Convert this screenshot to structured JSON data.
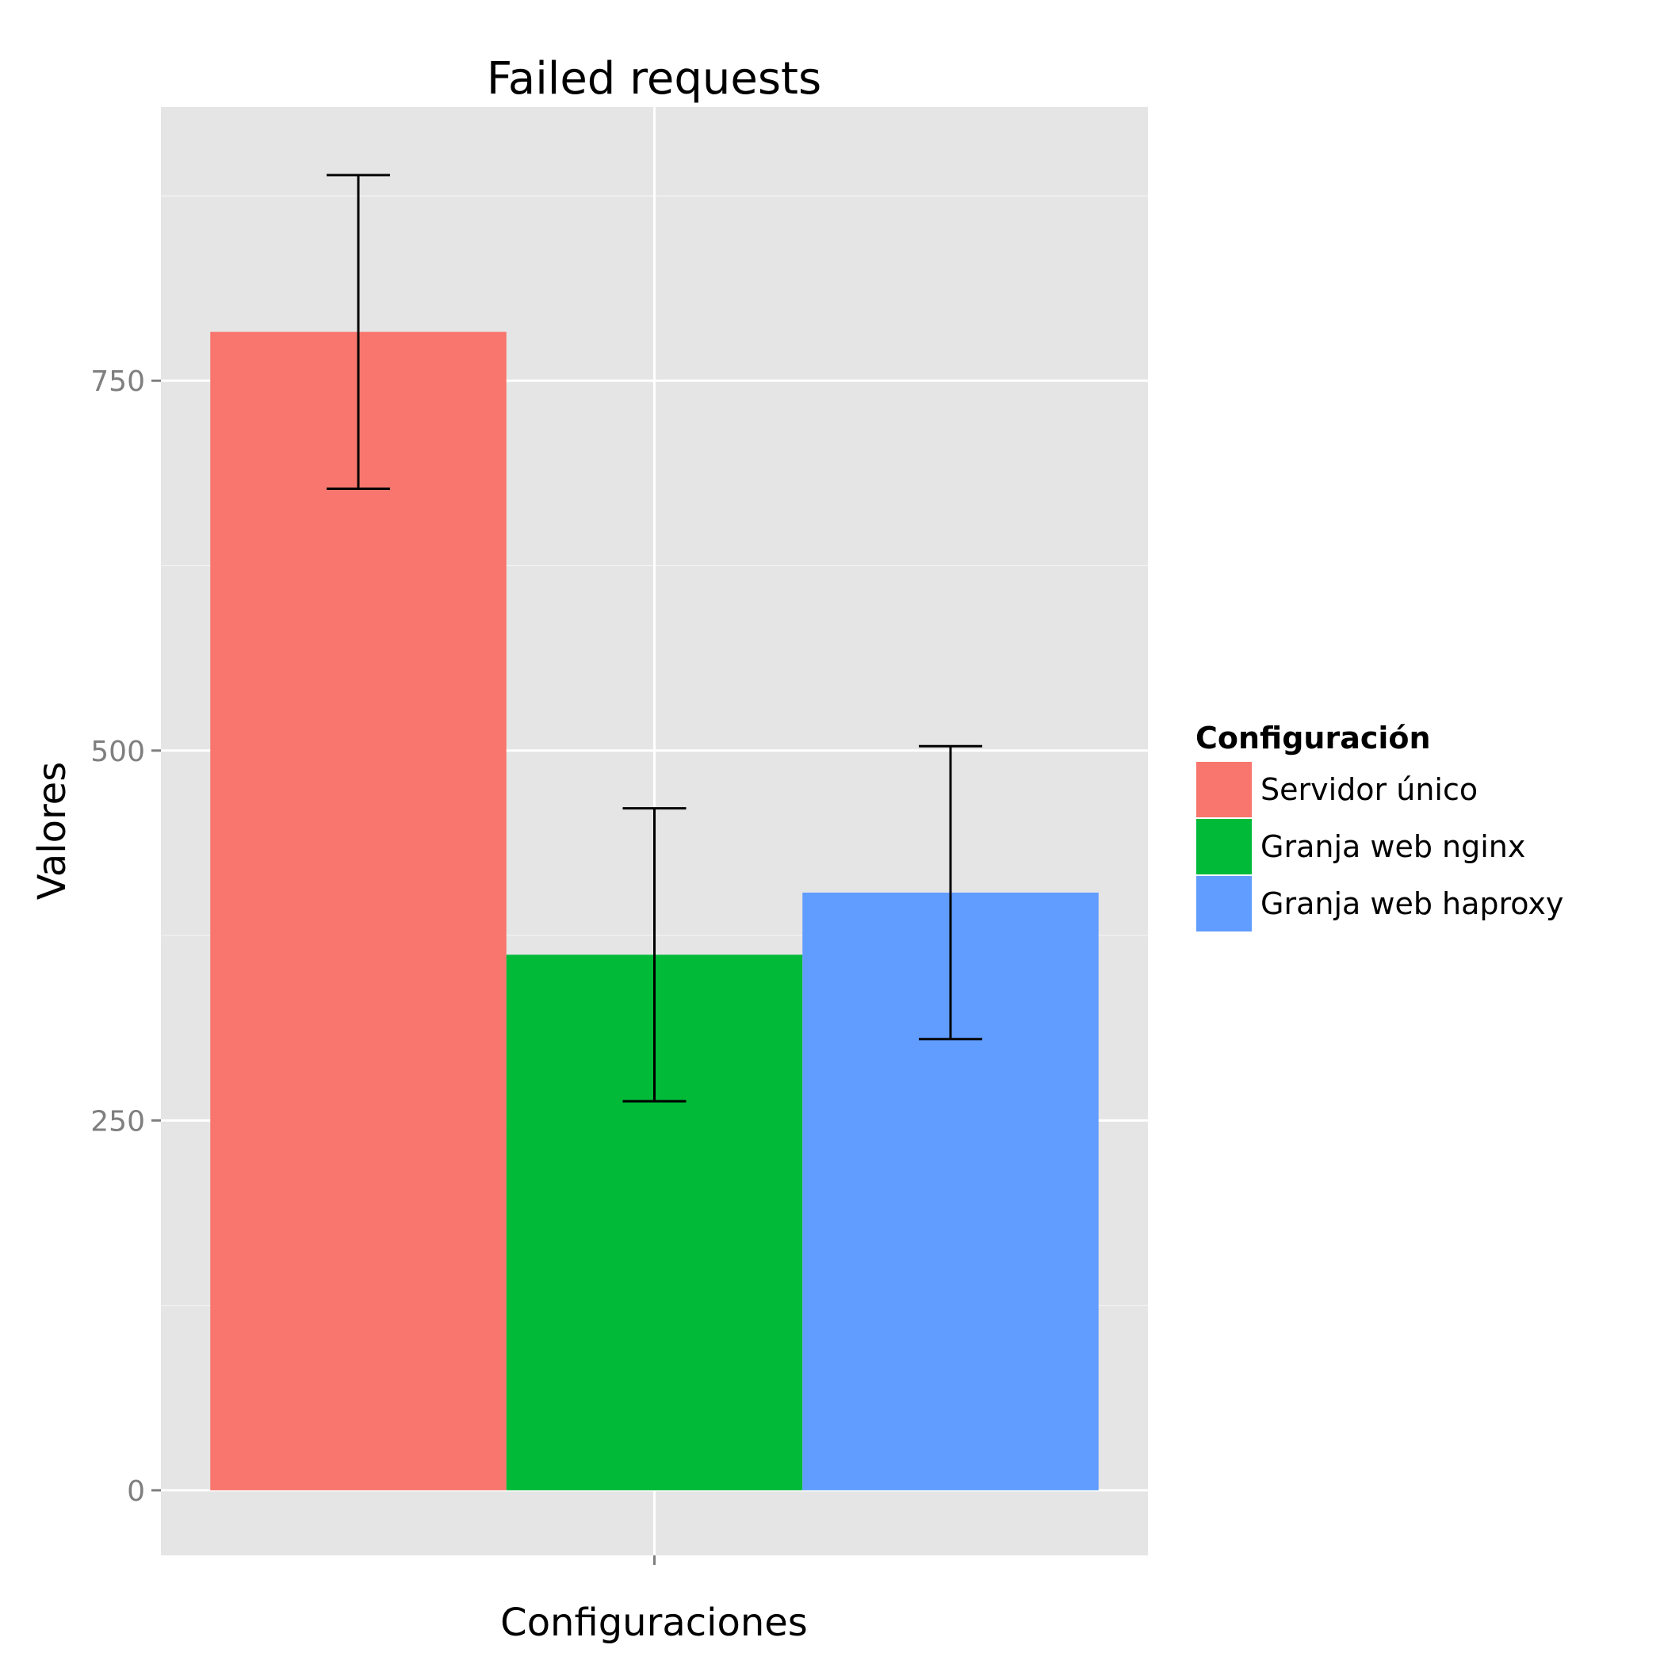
{
  "chart_data": {
    "type": "bar",
    "title": "Failed requests",
    "xlabel": "Configuraciones",
    "ylabel": "Valores",
    "categories": [
      ""
    ],
    "ylim": [
      -44,
      935
    ],
    "yticks": [
      0,
      250,
      500,
      750
    ],
    "grid": true,
    "legend": {
      "title": "Configuración",
      "position": "right"
    },
    "series": [
      {
        "name": "Servidor único",
        "values": [
          783
        ],
        "error_low": [
          677
        ],
        "error_high": [
          889
        ],
        "color": "#F8766D"
      },
      {
        "name": "Granja web nginx",
        "values": [
          362
        ],
        "error_low": [
          263
        ],
        "error_high": [
          461
        ],
        "color": "#00BA38"
      },
      {
        "name": "Granja web haproxy",
        "values": [
          404
        ],
        "error_low": [
          305
        ],
        "error_high": [
          503
        ],
        "color": "#619CFF"
      }
    ],
    "panel_background": "#E5E5E5",
    "grid_color": "#FFFFFF",
    "error_bar_color": "#000000"
  }
}
